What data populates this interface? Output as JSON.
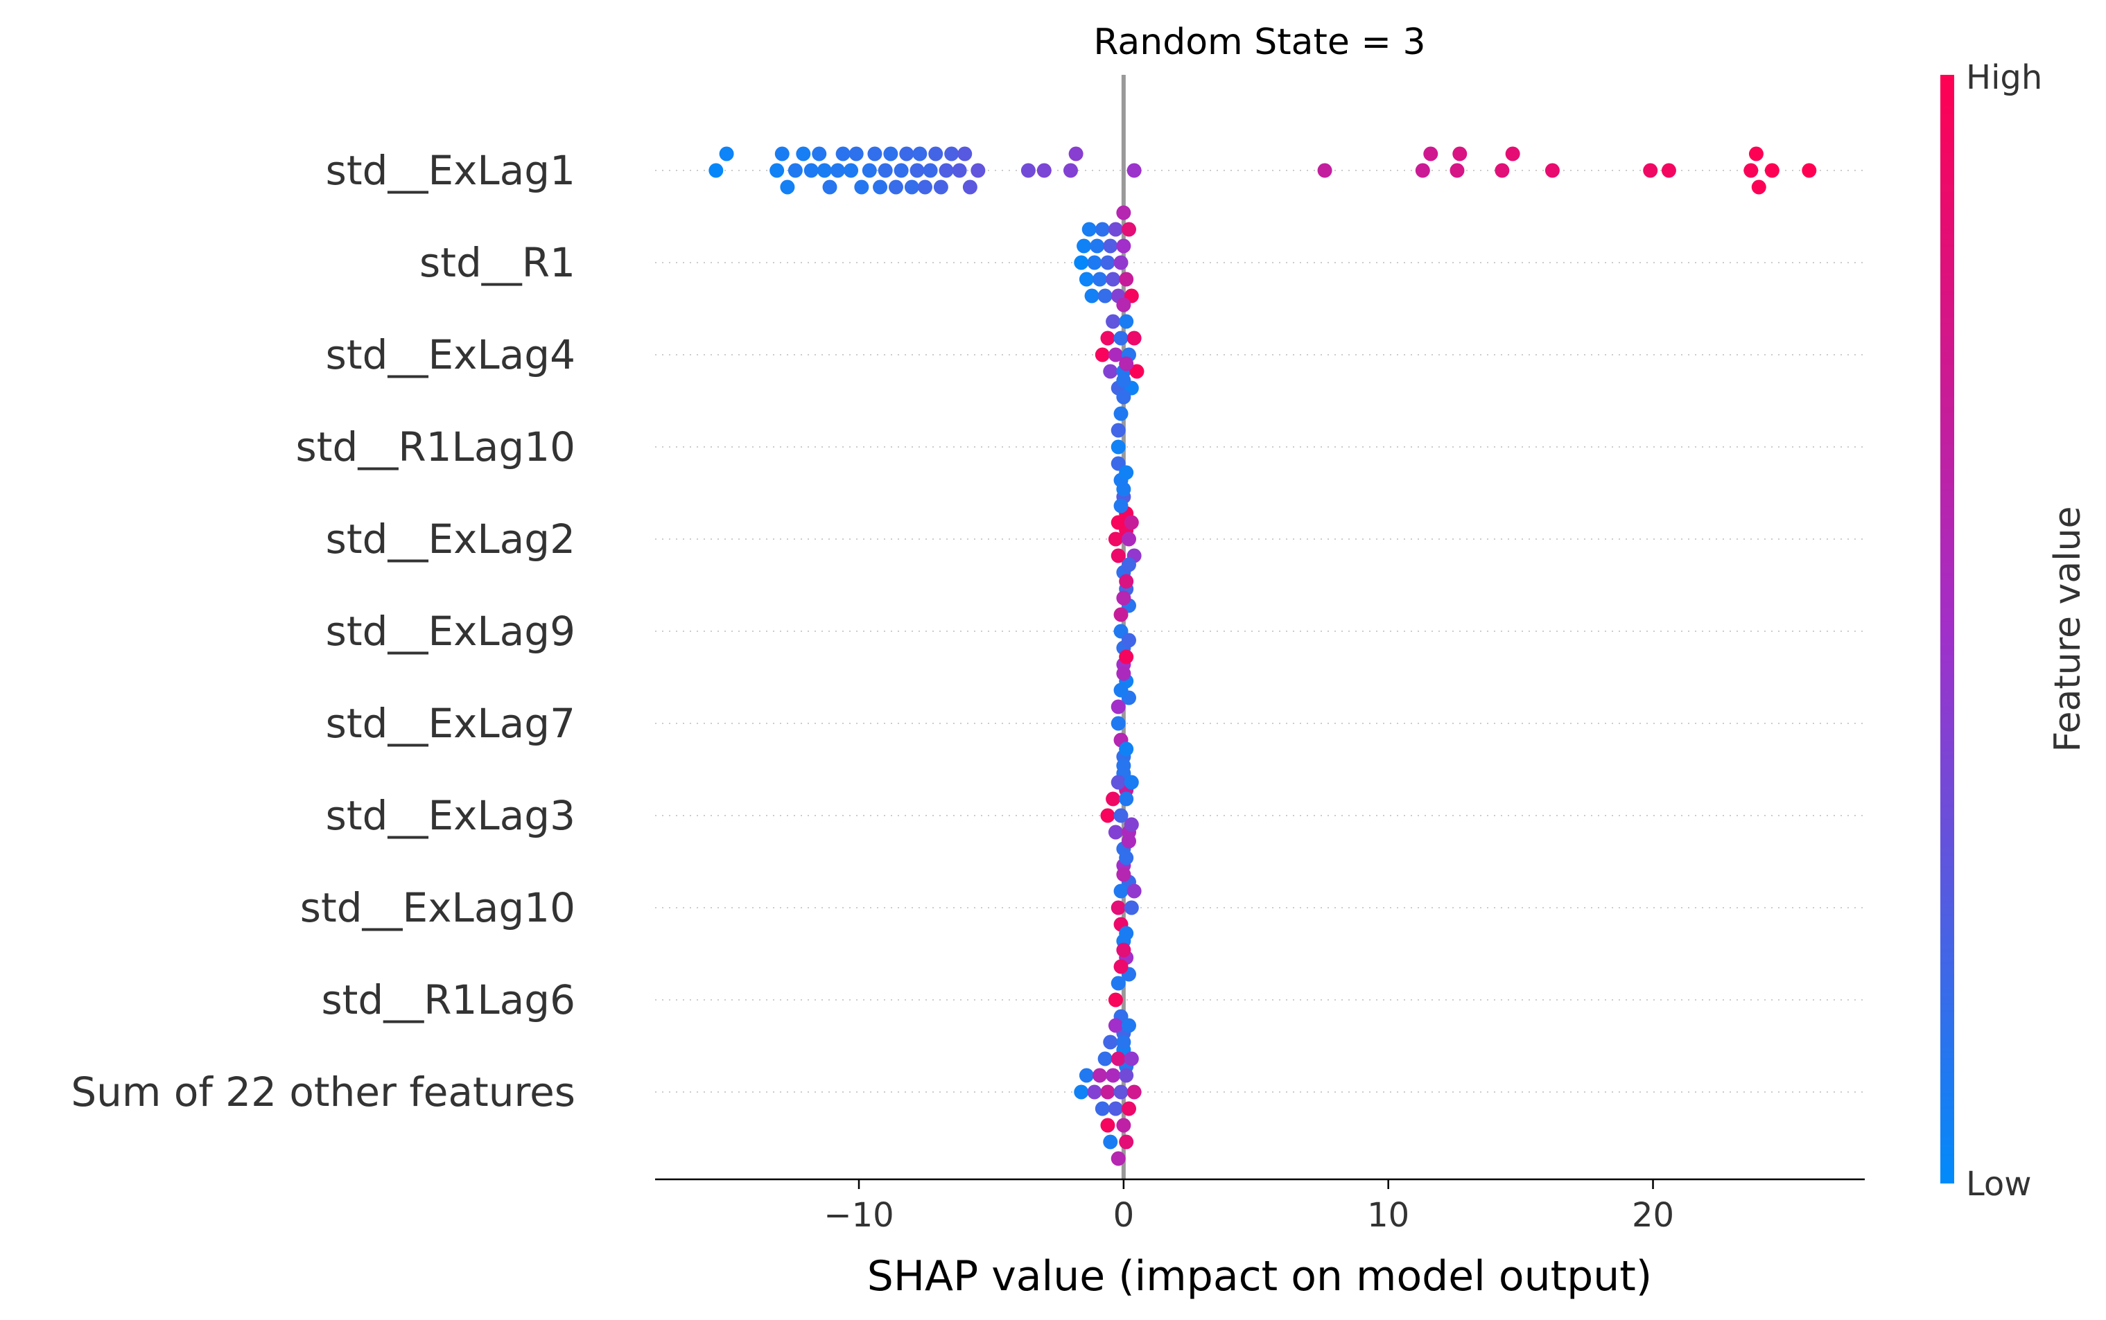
{
  "chart_data": {
    "type": "scatter",
    "subtype": "shap-beeswarm-summary",
    "title": "Random State = 3",
    "xlabel": "SHAP value (impact on model output)",
    "ylabel": "",
    "xlim": [
      -17.7,
      28.0
    ],
    "xticks": [
      -10,
      0,
      10,
      20
    ],
    "xtick_labels": [
      "−10",
      "0",
      "10",
      "20"
    ],
    "grid": "dotted horizontal row guides",
    "zero_line": true,
    "colorbar": {
      "label": "Feature value",
      "high_label": "High",
      "low_label": "Low",
      "low_color": "#008bfb",
      "high_color": "#ff0052",
      "mid_color": "#a22fc9"
    },
    "features": [
      {
        "name": "std__ExLag1",
        "points": [
          {
            "x": -15.4,
            "v": 0.02
          },
          {
            "x": -15.0,
            "v": 0.04
          },
          {
            "x": -13.1,
            "v": 0.05
          },
          {
            "x": -12.9,
            "v": 0.08
          },
          {
            "x": -12.7,
            "v": 0.06
          },
          {
            "x": -12.4,
            "v": 0.1
          },
          {
            "x": -12.1,
            "v": 0.07
          },
          {
            "x": -11.8,
            "v": 0.09
          },
          {
            "x": -11.5,
            "v": 0.11
          },
          {
            "x": -11.3,
            "v": 0.08
          },
          {
            "x": -11.1,
            "v": 0.12
          },
          {
            "x": -10.8,
            "v": 0.1
          },
          {
            "x": -10.6,
            "v": 0.13
          },
          {
            "x": -10.3,
            "v": 0.09
          },
          {
            "x": -10.1,
            "v": 0.14
          },
          {
            "x": -9.9,
            "v": 0.11
          },
          {
            "x": -9.6,
            "v": 0.12
          },
          {
            "x": -9.4,
            "v": 0.15
          },
          {
            "x": -9.2,
            "v": 0.13
          },
          {
            "x": -9.0,
            "v": 0.16
          },
          {
            "x": -8.8,
            "v": 0.14
          },
          {
            "x": -8.6,
            "v": 0.17
          },
          {
            "x": -8.4,
            "v": 0.15
          },
          {
            "x": -8.2,
            "v": 0.18
          },
          {
            "x": -8.0,
            "v": 0.16
          },
          {
            "x": -7.8,
            "v": 0.19
          },
          {
            "x": -7.7,
            "v": 0.17
          },
          {
            "x": -7.5,
            "v": 0.2
          },
          {
            "x": -7.3,
            "v": 0.18
          },
          {
            "x": -7.1,
            "v": 0.21
          },
          {
            "x": -6.9,
            "v": 0.22
          },
          {
            "x": -6.7,
            "v": 0.24
          },
          {
            "x": -6.5,
            "v": 0.23
          },
          {
            "x": -6.2,
            "v": 0.26
          },
          {
            "x": -6.0,
            "v": 0.27
          },
          {
            "x": -5.8,
            "v": 0.28
          },
          {
            "x": -5.5,
            "v": 0.3
          },
          {
            "x": -3.6,
            "v": 0.35
          },
          {
            "x": -3.0,
            "v": 0.38
          },
          {
            "x": -2.0,
            "v": 0.4
          },
          {
            "x": -1.8,
            "v": 0.42
          },
          {
            "x": 0.4,
            "v": 0.48
          },
          {
            "x": 7.6,
            "v": 0.68
          },
          {
            "x": 11.3,
            "v": 0.72
          },
          {
            "x": 11.6,
            "v": 0.74
          },
          {
            "x": 12.6,
            "v": 0.78
          },
          {
            "x": 12.7,
            "v": 0.8
          },
          {
            "x": 14.3,
            "v": 0.84
          },
          {
            "x": 14.7,
            "v": 0.86
          },
          {
            "x": 16.2,
            "v": 0.88
          },
          {
            "x": 19.9,
            "v": 0.92
          },
          {
            "x": 20.6,
            "v": 0.94
          },
          {
            "x": 23.7,
            "v": 0.97
          },
          {
            "x": 23.9,
            "v": 0.99
          },
          {
            "x": 24.0,
            "v": 0.98
          },
          {
            "x": 24.5,
            "v": 0.99
          },
          {
            "x": 25.9,
            "v": 1.0
          }
        ]
      },
      {
        "name": "std__R1",
        "points": [
          {
            "x": -1.6,
            "v": 0.02
          },
          {
            "x": -1.5,
            "v": 0.05
          },
          {
            "x": -1.4,
            "v": 0.04
          },
          {
            "x": -1.3,
            "v": 0.07
          },
          {
            "x": -1.2,
            "v": 0.06
          },
          {
            "x": -1.1,
            "v": 0.09
          },
          {
            "x": -1.0,
            "v": 0.1
          },
          {
            "x": -0.9,
            "v": 0.12
          },
          {
            "x": -0.8,
            "v": 0.14
          },
          {
            "x": -0.7,
            "v": 0.16
          },
          {
            "x": -0.6,
            "v": 0.2
          },
          {
            "x": -0.5,
            "v": 0.25
          },
          {
            "x": -0.4,
            "v": 0.3
          },
          {
            "x": -0.3,
            "v": 0.35
          },
          {
            "x": -0.2,
            "v": 0.4
          },
          {
            "x": -0.1,
            "v": 0.45
          },
          {
            "x": 0.0,
            "v": 0.5
          },
          {
            "x": 0.0,
            "v": 0.6
          },
          {
            "x": 0.1,
            "v": 0.7
          },
          {
            "x": 0.2,
            "v": 0.85
          },
          {
            "x": 0.3,
            "v": 0.95
          }
        ]
      },
      {
        "name": "std__ExLag4",
        "points": [
          {
            "x": -0.8,
            "v": 0.96
          },
          {
            "x": -0.6,
            "v": 0.92
          },
          {
            "x": -0.5,
            "v": 0.4
          },
          {
            "x": -0.4,
            "v": 0.3
          },
          {
            "x": -0.3,
            "v": 0.55
          },
          {
            "x": -0.2,
            "v": 0.2
          },
          {
            "x": -0.1,
            "v": 0.15
          },
          {
            "x": 0.0,
            "v": 0.1
          },
          {
            "x": 0.0,
            "v": 0.6
          },
          {
            "x": 0.1,
            "v": 0.08
          },
          {
            "x": 0.2,
            "v": 0.12
          },
          {
            "x": 0.3,
            "v": 0.05
          },
          {
            "x": 0.4,
            "v": 0.9
          },
          {
            "x": 0.5,
            "v": 0.98
          }
        ]
      },
      {
        "name": "std__R1Lag10",
        "points": [
          {
            "x": -0.2,
            "v": 0.05
          },
          {
            "x": -0.1,
            "v": 0.1
          },
          {
            "x": 0.0,
            "v": 0.15
          },
          {
            "x": 0.1,
            "v": 0.95
          },
          {
            "x": -0.2,
            "v": 0.2
          },
          {
            "x": 0.0,
            "v": 0.25
          },
          {
            "x": 0.1,
            "v": 0.6
          },
          {
            "x": -0.1,
            "v": 0.08
          },
          {
            "x": 0.0,
            "v": 0.12
          },
          {
            "x": -0.2,
            "v": 0.18
          },
          {
            "x": 0.1,
            "v": 0.92
          }
        ]
      },
      {
        "name": "std__ExLag2",
        "points": [
          {
            "x": -0.3,
            "v": 0.92
          },
          {
            "x": -0.2,
            "v": 0.96
          },
          {
            "x": -0.1,
            "v": 0.1
          },
          {
            "x": 0.0,
            "v": 0.15
          },
          {
            "x": 0.1,
            "v": 0.2
          },
          {
            "x": 0.2,
            "v": 0.55
          },
          {
            "x": 0.3,
            "v": 0.7
          },
          {
            "x": 0.4,
            "v": 0.45
          },
          {
            "x": 0.0,
            "v": 0.08
          },
          {
            "x": 0.2,
            "v": 0.12
          },
          {
            "x": -0.2,
            "v": 0.9
          },
          {
            "x": 0.1,
            "v": 0.05
          }
        ]
      },
      {
        "name": "std__ExLag9",
        "points": [
          {
            "x": -0.1,
            "v": 0.1
          },
          {
            "x": 0.0,
            "v": 0.15
          },
          {
            "x": 0.1,
            "v": 0.8
          },
          {
            "x": 0.2,
            "v": 0.2
          },
          {
            "x": 0.0,
            "v": 0.6
          },
          {
            "x": 0.1,
            "v": 0.05
          },
          {
            "x": 0.0,
            "v": 0.5
          },
          {
            "x": 0.2,
            "v": 0.12
          },
          {
            "x": -0.1,
            "v": 0.7
          }
        ]
      },
      {
        "name": "std__ExLag7",
        "points": [
          {
            "x": -0.2,
            "v": 0.1
          },
          {
            "x": -0.1,
            "v": 0.6
          },
          {
            "x": 0.0,
            "v": 0.15
          },
          {
            "x": 0.1,
            "v": 0.95
          },
          {
            "x": 0.2,
            "v": 0.2
          },
          {
            "x": 0.0,
            "v": 0.55
          },
          {
            "x": -0.1,
            "v": 0.08
          },
          {
            "x": 0.1,
            "v": 0.7
          },
          {
            "x": 0.0,
            "v": 0.12
          },
          {
            "x": -0.2,
            "v": 0.5
          }
        ]
      },
      {
        "name": "std__ExLag3",
        "points": [
          {
            "x": -0.6,
            "v": 0.96
          },
          {
            "x": -0.4,
            "v": 0.92
          },
          {
            "x": -0.3,
            "v": 0.4
          },
          {
            "x": -0.2,
            "v": 0.3
          },
          {
            "x": -0.1,
            "v": 0.2
          },
          {
            "x": 0.0,
            "v": 0.15
          },
          {
            "x": 0.1,
            "v": 0.1
          },
          {
            "x": 0.2,
            "v": 0.55
          },
          {
            "x": 0.3,
            "v": 0.08
          },
          {
            "x": 0.0,
            "v": 0.12
          },
          {
            "x": 0.1,
            "v": 0.05
          },
          {
            "x": 0.2,
            "v": 0.18
          },
          {
            "x": 0.0,
            "v": 0.5
          }
        ]
      },
      {
        "name": "std__ExLag10",
        "points": [
          {
            "x": -0.2,
            "v": 0.85
          },
          {
            "x": -0.1,
            "v": 0.1
          },
          {
            "x": 0.0,
            "v": 0.6
          },
          {
            "x": 0.1,
            "v": 0.15
          },
          {
            "x": 0.2,
            "v": 0.55
          },
          {
            "x": 0.3,
            "v": 0.2
          },
          {
            "x": 0.4,
            "v": 0.45
          },
          {
            "x": 0.0,
            "v": 0.08
          },
          {
            "x": 0.1,
            "v": 0.5
          },
          {
            "x": 0.2,
            "v": 0.12
          },
          {
            "x": -0.1,
            "v": 0.9
          },
          {
            "x": 0.3,
            "v": 0.4
          }
        ]
      },
      {
        "name": "std__R1Lag6",
        "points": [
          {
            "x": -0.3,
            "v": 0.96
          },
          {
            "x": -0.2,
            "v": 0.1
          },
          {
            "x": -0.1,
            "v": 0.15
          },
          {
            "x": 0.0,
            "v": 0.2
          },
          {
            "x": 0.0,
            "v": 0.85
          },
          {
            "x": 0.1,
            "v": 0.08
          },
          {
            "x": 0.1,
            "v": 0.12
          },
          {
            "x": 0.0,
            "v": 0.05
          },
          {
            "x": -0.1,
            "v": 0.9
          }
        ]
      },
      {
        "name": "Sum of 22 other features",
        "points": [
          {
            "x": -1.6,
            "v": 0.05
          },
          {
            "x": -1.4,
            "v": 0.1
          },
          {
            "x": -1.1,
            "v": 0.4
          },
          {
            "x": -0.9,
            "v": 0.6
          },
          {
            "x": -0.7,
            "v": 0.15
          },
          {
            "x": -0.6,
            "v": 0.7
          },
          {
            "x": -0.5,
            "v": 0.2
          },
          {
            "x": -0.4,
            "v": 0.55
          },
          {
            "x": -0.3,
            "v": 0.25
          },
          {
            "x": -0.2,
            "v": 0.8
          },
          {
            "x": -0.1,
            "v": 0.3
          },
          {
            "x": 0.0,
            "v": 0.65
          },
          {
            "x": 0.1,
            "v": 0.35
          },
          {
            "x": 0.2,
            "v": 0.9
          },
          {
            "x": 0.3,
            "v": 0.45
          },
          {
            "x": 0.4,
            "v": 0.75
          },
          {
            "x": -0.5,
            "v": 0.08
          },
          {
            "x": -0.3,
            "v": 0.5
          },
          {
            "x": 0.0,
            "v": 0.12
          },
          {
            "x": 0.1,
            "v": 0.85
          },
          {
            "x": -0.8,
            "v": 0.18
          },
          {
            "x": -0.2,
            "v": 0.6
          },
          {
            "x": 0.2,
            "v": 0.1
          },
          {
            "x": -0.6,
            "v": 0.95
          }
        ]
      }
    ]
  }
}
